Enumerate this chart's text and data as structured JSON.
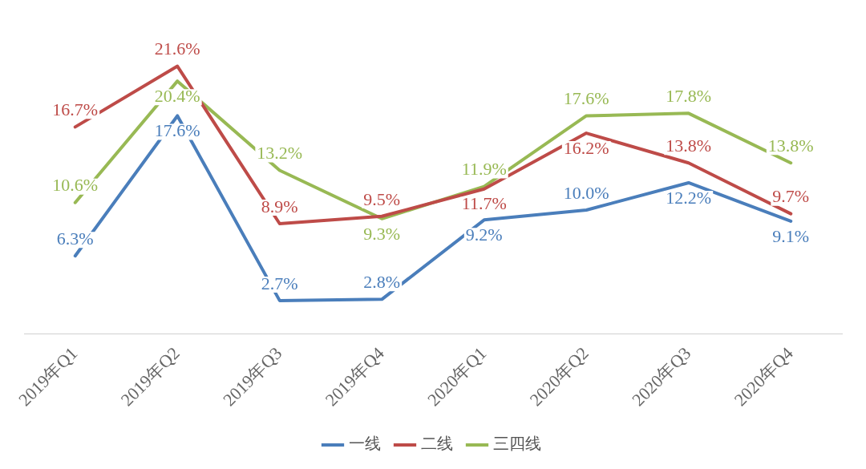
{
  "chart_data": {
    "type": "line",
    "categories": [
      "2019年Q1",
      "2019年Q2",
      "2019年Q3",
      "2019年Q4",
      "2020年Q1",
      "2020年Q2",
      "2020年Q3",
      "2020年Q4"
    ],
    "series": [
      {
        "name": "一线",
        "color": "#4a7ebb",
        "values": [
          6.3,
          17.6,
          2.7,
          2.8,
          9.2,
          10.0,
          12.2,
          9.1
        ],
        "value_labels": [
          "6.3%",
          "17.6%",
          "2.7%",
          "2.8%",
          "9.2%",
          "10.0%",
          "12.2%",
          "9.1%"
        ]
      },
      {
        "name": "二线",
        "color": "#be4b48",
        "values": [
          16.7,
          21.6,
          8.9,
          9.5,
          11.7,
          16.2,
          13.8,
          9.7
        ],
        "value_labels": [
          "16.7%",
          "21.6%",
          "8.9%",
          "9.5%",
          "11.7%",
          "16.2%",
          "13.8%",
          "9.7%"
        ]
      },
      {
        "name": "三四线",
        "color": "#98b954",
        "values": [
          10.6,
          20.4,
          13.2,
          9.3,
          11.9,
          17.6,
          17.8,
          13.8
        ],
        "value_labels": [
          "10.6%",
          "20.4%",
          "13.2%",
          "9.3%",
          "11.9%",
          "17.6%",
          "17.8%",
          "13.8%"
        ]
      }
    ],
    "legend": "bottom",
    "grid": false,
    "marker": "none",
    "line_style": "solid"
  }
}
